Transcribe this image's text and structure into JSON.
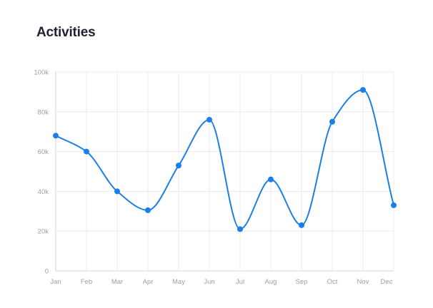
{
  "card": {
    "title": "Activities"
  },
  "colors": {
    "line": "#1a7fe6",
    "grid": "#ececec",
    "axis": "#d6d6d6",
    "tick_text": "#9aa0a8",
    "title": "#1f2330"
  },
  "chart_data": {
    "type": "line",
    "title": "Activities",
    "xlabel": "",
    "ylabel": "",
    "categories": [
      "Jan",
      "Feb",
      "Mar",
      "Apr",
      "May",
      "Jun",
      "Jul",
      "Aug",
      "Sep",
      "Oct",
      "Nov",
      "Dec"
    ],
    "series": [
      {
        "values": [
          68000,
          60000,
          40000,
          30500,
          53000,
          76000,
          21000,
          46000,
          23000,
          75000,
          91000,
          33000
        ]
      }
    ],
    "ylim": [
      0,
      100000
    ],
    "yticks": [
      0,
      20000,
      40000,
      60000,
      80000,
      100000
    ],
    "ytick_labels": [
      "0",
      "20k",
      "40k",
      "60k",
      "80k",
      "100k"
    ],
    "grid": true,
    "legend": "none",
    "smooth": true,
    "markers": true
  }
}
